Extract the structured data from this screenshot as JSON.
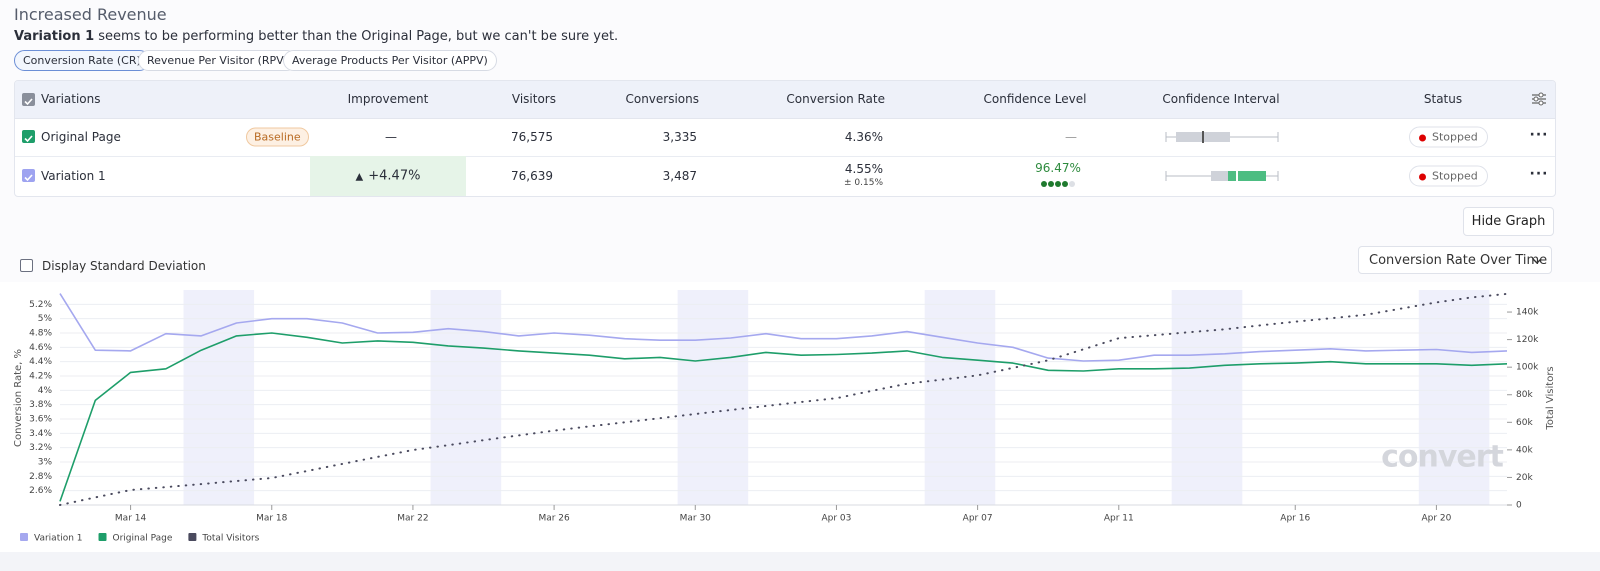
{
  "header": {
    "title": "Increased Revenue",
    "summary_bold": "Variation 1",
    "summary": "seems to be performing better than the Original Page, but we can't be sure yet."
  },
  "tabs": [
    "Conversion Rate (CR)",
    "Revenue Per Visitor (RPV)",
    "Average Products Per Visitor (APPV)"
  ],
  "table": {
    "columns": [
      "Variations",
      "Improvement",
      "Visitors",
      "Conversions",
      "Conversion Rate",
      "Confidence Level",
      "Confidence Interval",
      "Status"
    ],
    "rows": [
      {
        "name": "Original Page",
        "badge": "Baseline",
        "improvement": "—",
        "visitors": "76,575",
        "conversions": "3,335",
        "conversion_rate": "4.36%",
        "confidence": "—",
        "status": "Stopped"
      },
      {
        "name": "Variation 1",
        "improvement": "+4.47%",
        "visitors": "76,639",
        "conversions": "3,487",
        "conversion_rate": "4.55%",
        "conversion_rate_error": "± 0.15%",
        "confidence": "96.47%",
        "status": "Stopped"
      }
    ]
  },
  "buttons": {
    "hide_graph": "Hide Graph",
    "std_dev": "Display Standard Deviation",
    "graph_select": "Conversion Rate Over Time"
  },
  "logo": "convert",
  "chart_data": {
    "type": "line",
    "ylabel": "Conversion Rate, %",
    "y2label": "Total Visitors",
    "grid": true,
    "legend": "bottom-left",
    "categories": [
      null,
      null,
      "Mar 14",
      null,
      null,
      null,
      "Mar 18",
      null,
      null,
      null,
      "Mar 22",
      null,
      null,
      null,
      "Mar 26",
      null,
      null,
      null,
      "Mar 30",
      null,
      null,
      null,
      "Apr 03",
      null,
      null,
      null,
      "Apr 07",
      null,
      null,
      null,
      "Apr 11",
      null,
      null,
      null,
      null,
      "Apr 16",
      null,
      null,
      null,
      "Apr 20",
      null,
      null
    ],
    "ylim": [
      2.4,
      5.4
    ],
    "yticks": [
      {
        "value": 2.6,
        "label": "2.6%"
      },
      {
        "value": 2.8,
        "label": "2.8%"
      },
      {
        "value": 3,
        "label": "3%"
      },
      {
        "value": 3.2,
        "label": "3.2%"
      },
      {
        "value": 3.4,
        "label": "3.4%"
      },
      {
        "value": 3.6,
        "label": "3.6%"
      },
      {
        "value": 3.8,
        "label": "3.8%"
      },
      {
        "value": 4,
        "label": "4%"
      },
      {
        "value": 4.2,
        "label": "4.2%"
      },
      {
        "value": 4.4,
        "label": "4.4%"
      },
      {
        "value": 4.6,
        "label": "4.6%"
      },
      {
        "value": 4.8,
        "label": "4.8%"
      },
      {
        "value": 5,
        "label": "5%"
      },
      {
        "value": 5.2,
        "label": "5.2%"
      }
    ],
    "y2lim": [
      0,
      156000
    ],
    "y2ticks": [
      0,
      {
        "value": 20000,
        "label": "20k"
      },
      {
        "value": 40000,
        "label": "40k"
      },
      {
        "value": 60000,
        "label": "60k"
      },
      {
        "value": 80000,
        "label": "80k"
      },
      {
        "value": 100000,
        "label": "100k"
      },
      {
        "value": 120000,
        "label": "120k"
      },
      {
        "value": 140000,
        "label": "140k"
      }
    ],
    "series": [
      {
        "name": "Variation 1",
        "color": "#a5a8ef",
        "values": [
          5.35,
          4.56,
          4.55,
          4.79,
          4.76,
          4.94,
          5.0,
          5.0,
          4.94,
          4.8,
          4.81,
          4.86,
          4.82,
          4.76,
          4.8,
          4.77,
          4.72,
          4.7,
          4.7,
          4.73,
          4.79,
          4.72,
          4.72,
          4.76,
          4.82,
          4.74,
          4.66,
          4.6,
          4.45,
          4.41,
          4.42,
          4.49,
          4.49,
          4.51,
          4.54,
          4.56,
          4.58,
          4.55,
          4.56,
          4.57,
          4.53,
          4.55
        ]
      },
      {
        "name": "Original Page",
        "color": "#1e9e6a",
        "values": [
          2.45,
          3.86,
          4.25,
          4.3,
          4.56,
          4.76,
          4.8,
          4.74,
          4.66,
          4.69,
          4.67,
          4.62,
          4.59,
          4.55,
          4.52,
          4.49,
          4.44,
          4.46,
          4.41,
          4.46,
          4.53,
          4.49,
          4.5,
          4.52,
          4.55,
          4.46,
          4.42,
          4.38,
          4.28,
          4.27,
          4.3,
          4.3,
          4.31,
          4.35,
          4.37,
          4.38,
          4.4,
          4.37,
          4.37,
          4.37,
          4.35,
          4.37
        ]
      },
      {
        "name": "Total Visitors",
        "color": "#4a4a5e",
        "axis": "y2",
        "values": [
          0,
          5500,
          10900,
          13000,
          15200,
          17400,
          19600,
          24700,
          29800,
          34900,
          39900,
          43400,
          47000,
          50500,
          54000,
          57000,
          60000,
          63000,
          66000,
          68900,
          71800,
          74700,
          77500,
          82800,
          88000,
          91000,
          94000,
          99500,
          105000,
          113000,
          121000,
          123200,
          125400,
          127500,
          130300,
          133000,
          135500,
          138000,
          142500,
          147000,
          150600,
          153200
        ]
      }
    ]
  }
}
